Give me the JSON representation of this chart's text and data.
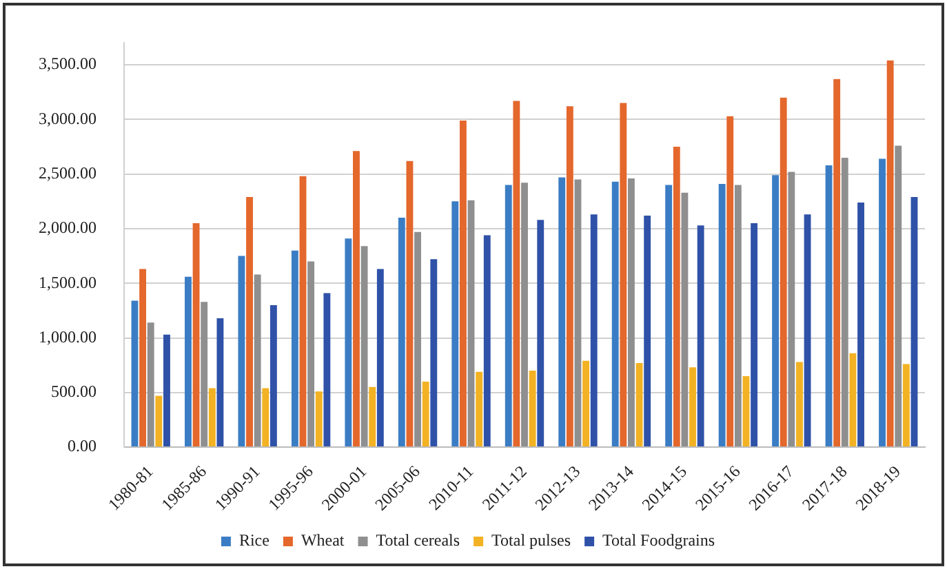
{
  "chart_data": {
    "type": "bar",
    "categories": [
      "1980-81",
      "1985-86",
      "1990-91",
      "1995-96",
      "2000-01",
      "2005-06",
      "2010-11",
      "2011-12",
      "2012-13",
      "2013-14",
      "2014-15",
      "2015-16",
      "2016-17",
      "2017-18",
      "2018-19"
    ],
    "series": [
      {
        "name": "Rice",
        "color": "#3b7dc4",
        "values": [
          1340,
          1560,
          1750,
          1800,
          1910,
          2100,
          2250,
          2400,
          2470,
          2430,
          2400,
          2410,
          2490,
          2580,
          2640
        ]
      },
      {
        "name": "Wheat",
        "color": "#e4672c",
        "values": [
          1630,
          2050,
          2290,
          2480,
          2710,
          2620,
          2990,
          3170,
          3120,
          3150,
          2750,
          3030,
          3200,
          3370,
          3540
        ]
      },
      {
        "name": "Total cereals",
        "color": "#8f8f8f",
        "values": [
          1140,
          1330,
          1580,
          1700,
          1840,
          1970,
          2260,
          2420,
          2450,
          2460,
          2330,
          2400,
          2520,
          2650,
          2760
        ]
      },
      {
        "name": "Total pulses",
        "color": "#f2b224",
        "values": [
          470,
          540,
          540,
          510,
          550,
          600,
          690,
          700,
          790,
          770,
          730,
          650,
          780,
          860,
          760
        ]
      },
      {
        "name": "Total Foodgrains",
        "color": "#2f52a8",
        "values": [
          1030,
          1180,
          1300,
          1410,
          1630,
          1720,
          1940,
          2080,
          2130,
          2120,
          2030,
          2050,
          2130,
          2240,
          2290
        ]
      }
    ],
    "ylim": [
      0,
      3700
    ],
    "yticks": [
      {
        "value": 0,
        "label": "0.00"
      },
      {
        "value": 500,
        "label": "500.00"
      },
      {
        "value": 1000,
        "label": "1,000.00"
      },
      {
        "value": 1500,
        "label": "1,500.00"
      },
      {
        "value": 2000,
        "label": "2,000.00"
      },
      {
        "value": 2500,
        "label": "2,500.00"
      },
      {
        "value": 3000,
        "label": "3,000.00"
      },
      {
        "value": 3500,
        "label": "3,500.00"
      }
    ],
    "grid": "y",
    "legend": "bottom"
  }
}
